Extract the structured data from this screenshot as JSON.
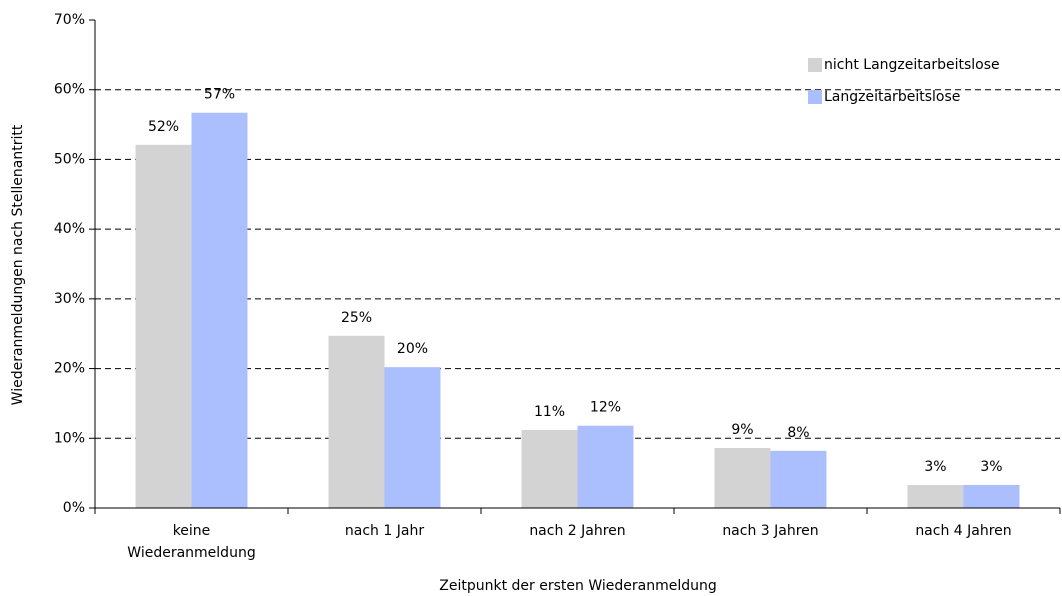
{
  "chart_data": {
    "type": "bar",
    "x_label": "Zeitpunkt der ersten Wiederanmeldung",
    "y_label": "Wiederanmeldungen nach Stellenantritt",
    "categories": [
      "keine\nWiederanmeldung",
      "nach 1 Jahr",
      "nach 2 Jahren",
      "nach 3 Jahren",
      "nach 4 Jahren"
    ],
    "series": [
      {
        "name": "nicht Langzeitarbeitslose",
        "color": "#d3d3d3",
        "values": [
          52.1,
          24.7,
          11.2,
          8.6,
          3.3
        ],
        "value_labels": [
          "52%",
          "25%",
          "11%",
          "9%",
          "3%"
        ]
      },
      {
        "name": "Langzeitarbeitslose",
        "color": "#abbfff",
        "values": [
          56.7,
          20.2,
          11.8,
          8.2,
          3.3
        ],
        "value_labels": [
          "57%",
          "20%",
          "12%",
          "8%",
          "3%"
        ]
      }
    ],
    "ylim": [
      0,
      70
    ],
    "yticks": [
      {
        "value": 0,
        "label": "0%"
      },
      {
        "value": 10,
        "label": "10%"
      },
      {
        "value": 20,
        "label": "20%"
      },
      {
        "value": 30,
        "label": "30%"
      },
      {
        "value": 40,
        "label": "40%"
      },
      {
        "value": 50,
        "label": "50%"
      },
      {
        "value": 60,
        "label": "60%"
      },
      {
        "value": 70,
        "label": "70%"
      }
    ],
    "grid": true,
    "legend": "top-right"
  }
}
